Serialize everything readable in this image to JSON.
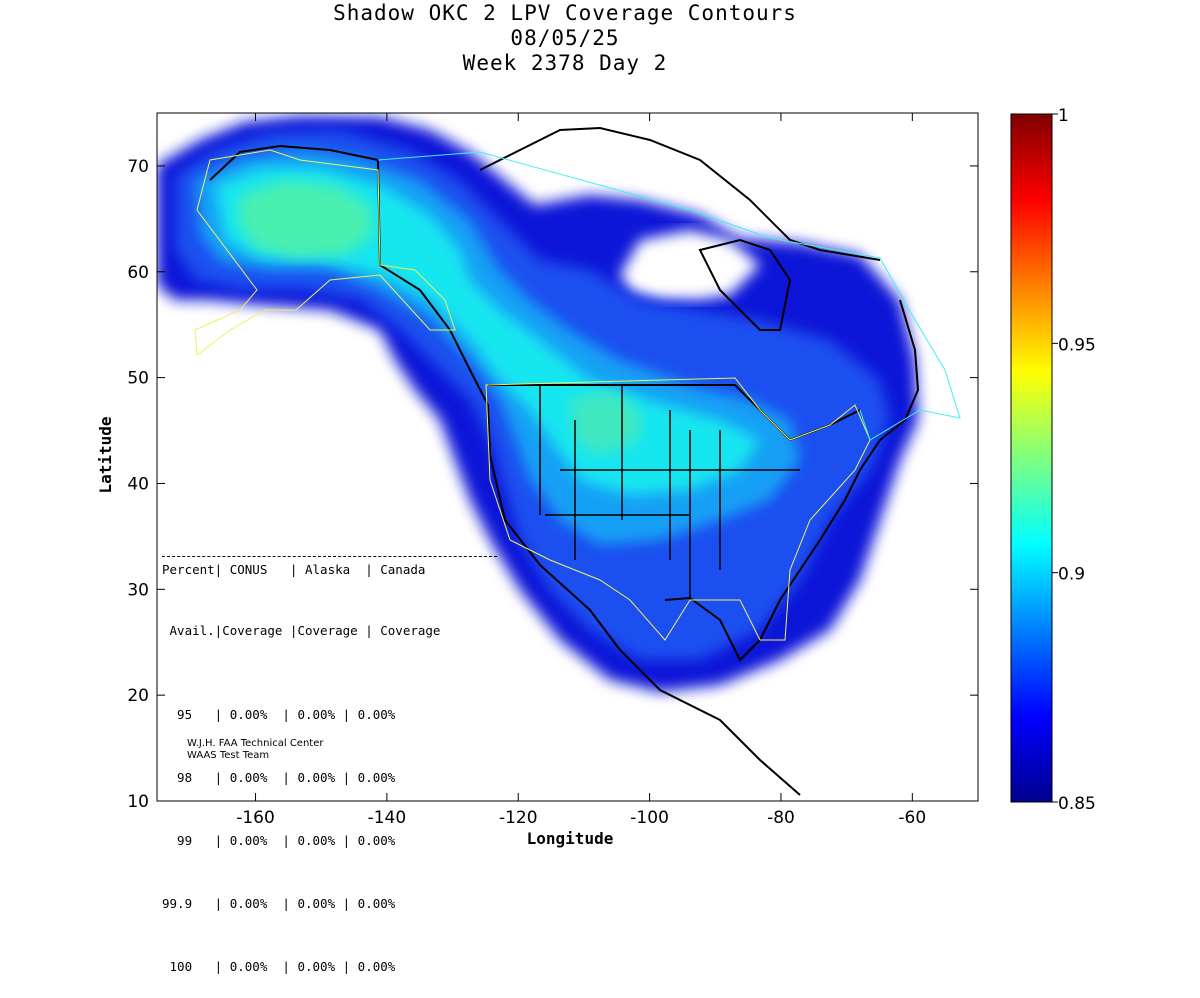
{
  "title": {
    "line1": "Shadow OKC 2 LPV Coverage Contours",
    "line2": "08/05/25",
    "line3": "Week 2378 Day 2"
  },
  "axes": {
    "xlabel": "Longitude",
    "ylabel": "Latitude",
    "x_ticks": [
      "-160",
      "-140",
      "-120",
      "-100",
      "-80",
      "-60"
    ],
    "y_ticks": [
      "10",
      "20",
      "30",
      "40",
      "50",
      "60",
      "70"
    ]
  },
  "colorbar": {
    "ticks": [
      "0.85",
      "0.9",
      "0.95",
      "1"
    ],
    "colormap": "jet"
  },
  "stats_table": {
    "header1": "Percent| CONUS   | Alaska  | Canada",
    "header2": " Avail.|Coverage |Coverage | Coverage",
    "divider": "----------------------------------------",
    "rows": [
      "  95   | 0.00%  | 0.00% | 0.00%",
      "  98   | 0.00%  | 0.00% | 0.00%",
      "  99   | 0.00%  | 0.00% | 0.00%",
      "99.9   | 0.00%  | 0.00% | 0.00%",
      " 100   | 0.00%  | 0.00% | 0.00%"
    ]
  },
  "credit": {
    "line1": "W.J.H. FAA Technical Center",
    "line2": "WAAS Test Team"
  },
  "chart_data": {
    "type": "heatmap",
    "xlim": [
      -175,
      -50
    ],
    "ylim": [
      10,
      75
    ],
    "clim": [
      0.85,
      1.0
    ],
    "grid": false,
    "stats": {
      "columns": [
        "Percent Avail.",
        "CONUS Coverage",
        "Alaska Coverage",
        "Canada Coverage"
      ],
      "rows": [
        [
          "95",
          "0.00%",
          "0.00%",
          "0.00%"
        ],
        [
          "98",
          "0.00%",
          "0.00%",
          "0.00%"
        ],
        [
          "99",
          "0.00%",
          "0.00%",
          "0.00%"
        ],
        [
          "99.9",
          "0.00%",
          "0.00%",
          "0.00%"
        ],
        [
          "100",
          "0.00%",
          "0.00%",
          "0.00%"
        ]
      ]
    }
  }
}
